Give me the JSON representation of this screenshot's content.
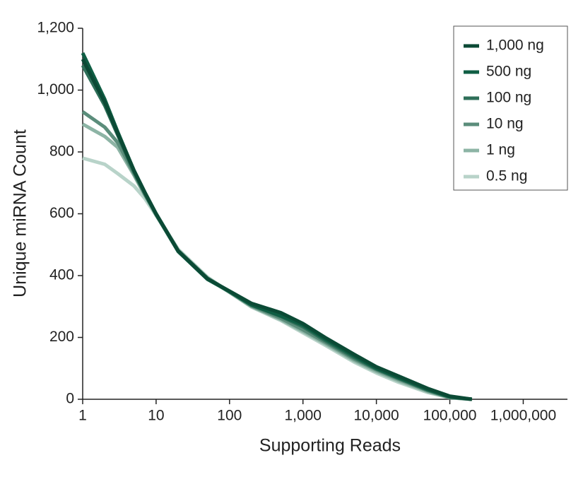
{
  "chart_data": {
    "type": "line",
    "x_label": "Supporting Reads",
    "y_label": "Unique miRNA Count",
    "x_scale": "log",
    "xlim": [
      1,
      4000000
    ],
    "ylim": [
      0,
      1200
    ],
    "xticks": [
      1,
      10,
      100,
      {
        "value": 1000,
        "label": "1,000"
      },
      {
        "value": 10000,
        "label": "10,000"
      },
      {
        "value": 100000,
        "label": "100,000"
      },
      {
        "value": 1000000,
        "label": "1,000,000"
      }
    ],
    "yticks": [
      0,
      200,
      400,
      600,
      800,
      {
        "value": 1000,
        "label": "1,000"
      },
      {
        "value": 1200,
        "label": "1,200"
      }
    ],
    "legend_position": "upper right",
    "x": [
      1,
      2,
      3,
      5,
      7,
      10,
      20,
      50,
      100,
      200,
      500,
      1000,
      2000,
      5000,
      10000,
      20000,
      50000,
      100000,
      200000
    ],
    "series": [
      {
        "name": "1,000 ng",
        "color": "#0b4a35",
        "values": [
          1100,
          960,
          860,
          740,
          670,
          600,
          480,
          390,
          350,
          310,
          280,
          245,
          200,
          145,
          105,
          75,
          35,
          10,
          0
        ]
      },
      {
        "name": "500 ng",
        "color": "#0f5e44",
        "values": [
          1120,
          970,
          865,
          740,
          670,
          600,
          478,
          388,
          348,
          305,
          270,
          240,
          195,
          140,
          100,
          70,
          32,
          8,
          0
        ]
      },
      {
        "name": "100 ng",
        "color": "#2f6f59",
        "values": [
          1080,
          950,
          855,
          735,
          665,
          597,
          478,
          390,
          348,
          305,
          268,
          235,
          190,
          135,
          98,
          68,
          30,
          7,
          0
        ]
      },
      {
        "name": "10 ng",
        "color": "#5b8d7b",
        "values": [
          930,
          880,
          830,
          730,
          665,
          600,
          480,
          392,
          348,
          302,
          262,
          225,
          185,
          130,
          95,
          65,
          28,
          6,
          0
        ]
      },
      {
        "name": "1 ng",
        "color": "#8db4a5",
        "values": [
          890,
          850,
          815,
          725,
          660,
          600,
          482,
          392,
          346,
          300,
          258,
          220,
          180,
          125,
          90,
          60,
          25,
          5,
          0
        ]
      },
      {
        "name": "0.5 ng",
        "color": "#b8d3c9",
        "values": [
          780,
          760,
          730,
          690,
          650,
          595,
          485,
          395,
          346,
          298,
          255,
          215,
          175,
          120,
          85,
          55,
          22,
          5,
          0
        ]
      }
    ]
  }
}
